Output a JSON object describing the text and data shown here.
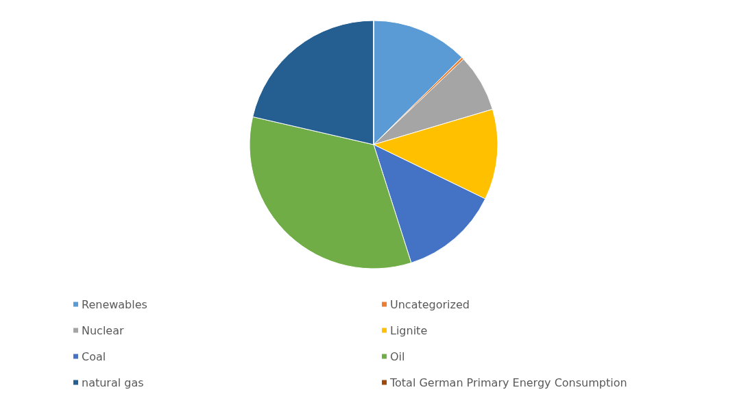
{
  "chart_data": {
    "type": "pie",
    "categories": [
      "Renewables",
      "Uncategorized",
      "Nuclear",
      "Lignite",
      "Coal",
      "Oil",
      "natural gas",
      "Total German Primary Energy Consumption"
    ],
    "values": [
      12.6,
      0.3,
      7.5,
      11.8,
      12.9,
      33.5,
      21.4,
      0
    ],
    "colors": [
      "#5b9bd5",
      "#ed7d31",
      "#a5a5a5",
      "#ffc000",
      "#4472c4",
      "#70ad47",
      "#255e91",
      "#9e480e"
    ],
    "legend": "bottom"
  }
}
